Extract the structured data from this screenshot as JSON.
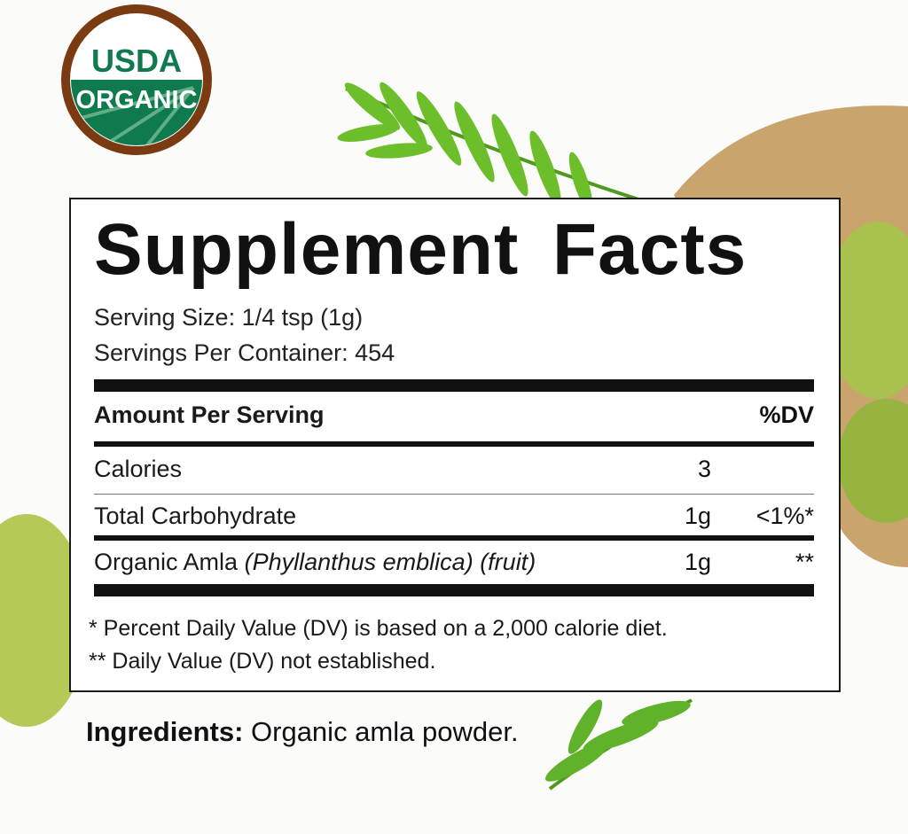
{
  "badge": {
    "line1": "USDA",
    "line2": "ORGANIC",
    "colors": {
      "ring": "#7a3b12",
      "green": "#0e7a4e"
    }
  },
  "facts": {
    "title": "Supplement Facts",
    "serving_size": "Serving Size: 1/4 tsp (1g)",
    "servings_per_container": "Servings Per Container: 454",
    "header": {
      "label": "Amount Per Serving",
      "dv": "%DV"
    },
    "rows": [
      {
        "name": "Calories",
        "name_italic": "",
        "name_suffix": "",
        "amount": "3",
        "dv": ""
      },
      {
        "name": "Total Carbohydrate",
        "name_italic": "",
        "name_suffix": "",
        "amount": "1g",
        "dv": "<1%*"
      },
      {
        "name": "Organic Amla ",
        "name_italic": "(Phyllanthus emblica) (fruit)",
        "name_suffix": "",
        "amount": "1g",
        "dv": "**"
      }
    ],
    "footnotes": [
      "* Percent Daily Value (DV) is based on a 2,000 calorie diet.",
      "** Daily Value (DV) not established."
    ]
  },
  "ingredients": {
    "label": "Ingredients:",
    "text": " Organic amla powder."
  }
}
